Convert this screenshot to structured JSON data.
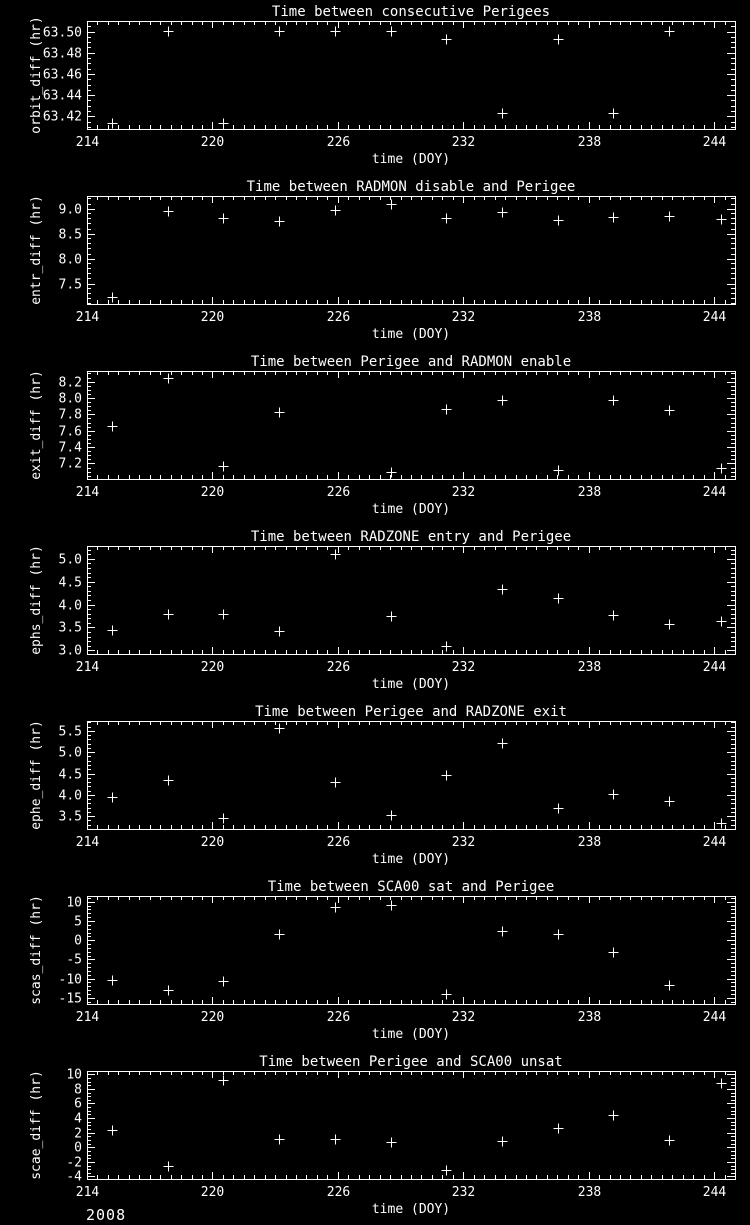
{
  "page": {
    "background": "#000000",
    "foreground": "#ffffff"
  },
  "footer": {
    "year": "2008"
  },
  "chart_data": [
    {
      "type": "scatter",
      "marker": "plus",
      "title": "Time between consecutive Perigees",
      "xlabel": "time (DOY)",
      "ylabel": "orbit_diff (hr)",
      "xlim": [
        214,
        245
      ],
      "x_ticks": {
        "values": [
          214,
          220,
          226,
          232,
          238,
          244
        ],
        "labels": [
          "214",
          "220",
          "226",
          "232",
          "238",
          "244"
        ],
        "minor_step": 0.5
      },
      "ylim": [
        63.408,
        63.51
      ],
      "y_ticks": {
        "values": [
          63.42,
          63.44,
          63.46,
          63.48,
          63.5
        ],
        "labels": [
          "63.42",
          "63.44",
          "63.46",
          "63.48",
          "63.50"
        ],
        "minor_step": 0.005
      },
      "x": [
        215.2,
        217.86,
        220.53,
        223.19,
        225.86,
        228.52,
        231.18,
        233.85,
        236.51,
        239.18,
        241.84,
        244.33
      ],
      "y": [
        63.414,
        63.501,
        63.414,
        63.501,
        63.501,
        63.501,
        63.493,
        63.423,
        63.493,
        63.423,
        63.501,
        null
      ]
    },
    {
      "type": "scatter",
      "marker": "plus",
      "title": "Time between RADMON disable and Perigee",
      "xlabel": "time (DOY)",
      "ylabel": "entr_diff (hr)",
      "xlim": [
        214,
        245
      ],
      "x_ticks": {
        "values": [
          214,
          220,
          226,
          232,
          238,
          244
        ],
        "labels": [
          "214",
          "220",
          "226",
          "232",
          "238",
          "244"
        ],
        "minor_step": 0.5
      },
      "ylim": [
        7.09,
        9.25
      ],
      "y_ticks": {
        "values": [
          7.5,
          8.0,
          8.5,
          9.0
        ],
        "labels": [
          "7.5",
          "8.0",
          "8.5",
          "9.0"
        ],
        "minor_step": 0.1
      },
      "x": [
        215.2,
        217.86,
        220.53,
        223.19,
        225.86,
        228.52,
        231.18,
        233.85,
        236.51,
        239.18,
        241.84,
        244.33
      ],
      "y": [
        7.23,
        8.95,
        8.8,
        8.74,
        8.96,
        9.08,
        8.81,
        8.94,
        8.77,
        8.82,
        8.85,
        8.79
      ]
    },
    {
      "type": "scatter",
      "marker": "plus",
      "title": "Time between Perigee and RADMON enable",
      "xlabel": "time (DOY)",
      "ylabel": "exit_diff (hr)",
      "xlim": [
        214,
        245
      ],
      "x_ticks": {
        "values": [
          214,
          220,
          226,
          232,
          238,
          244
        ],
        "labels": [
          "214",
          "220",
          "226",
          "232",
          "238",
          "244"
        ],
        "minor_step": 0.5
      },
      "ylim": [
        7.01,
        8.33
      ],
      "y_ticks": {
        "values": [
          7.2,
          7.4,
          7.6,
          7.8,
          8.0,
          8.2
        ],
        "labels": [
          "7.2",
          "7.4",
          "7.6",
          "7.8",
          "8.0",
          "8.2"
        ],
        "minor_step": 0.05
      },
      "x": [
        215.2,
        217.86,
        220.53,
        223.19,
        225.86,
        228.52,
        231.18,
        233.85,
        236.51,
        239.18,
        241.84,
        244.33
      ],
      "y": [
        7.66,
        8.25,
        7.17,
        7.83,
        null,
        7.1,
        7.86,
        7.97,
        7.12,
        7.97,
        7.85,
        7.15
      ]
    },
    {
      "type": "scatter",
      "marker": "plus",
      "title": "Time between RADZONE entry and Perigee",
      "xlabel": "time (DOY)",
      "ylabel": "ephs_diff (hr)",
      "xlim": [
        214,
        245
      ],
      "x_ticks": {
        "values": [
          214,
          220,
          226,
          232,
          238,
          244
        ],
        "labels": [
          "214",
          "220",
          "226",
          "232",
          "238",
          "244"
        ],
        "minor_step": 0.5
      },
      "ylim": [
        2.92,
        5.28
      ],
      "y_ticks": {
        "values": [
          3.0,
          3.5,
          4.0,
          4.5,
          5.0
        ],
        "labels": [
          "3.0",
          "3.5",
          "4.0",
          "4.5",
          "5.0"
        ],
        "minor_step": 0.1
      },
      "x": [
        215.2,
        217.86,
        220.53,
        223.19,
        225.86,
        228.52,
        231.18,
        233.85,
        236.51,
        239.18,
        241.84,
        244.33
      ],
      "y": [
        3.45,
        3.8,
        3.8,
        3.42,
        5.11,
        3.75,
        3.1,
        4.35,
        4.15,
        3.78,
        3.57,
        3.65
      ]
    },
    {
      "type": "scatter",
      "marker": "plus",
      "title": "Time between Perigee and RADZONE exit",
      "xlabel": "time (DOY)",
      "ylabel": "ephe_diff (hr)",
      "xlim": [
        214,
        245
      ],
      "x_ticks": {
        "values": [
          214,
          220,
          226,
          232,
          238,
          244
        ],
        "labels": [
          "214",
          "220",
          "226",
          "232",
          "238",
          "244"
        ],
        "minor_step": 0.5
      },
      "ylim": [
        3.2,
        5.73
      ],
      "y_ticks": {
        "values": [
          3.5,
          4.0,
          4.5,
          5.0,
          5.5
        ],
        "labels": [
          "3.5",
          "4.0",
          "4.5",
          "5.0",
          "5.5"
        ],
        "minor_step": 0.1
      },
      "x": [
        215.2,
        217.86,
        220.53,
        223.19,
        225.86,
        228.52,
        231.18,
        233.85,
        236.51,
        239.18,
        241.84,
        244.33
      ],
      "y": [
        3.95,
        4.35,
        3.45,
        5.56,
        4.3,
        3.52,
        4.46,
        5.21,
        3.7,
        4.01,
        3.85,
        3.35
      ]
    },
    {
      "type": "scatter",
      "marker": "plus",
      "title": "Time between SCA00 sat and Perigee",
      "xlabel": "time (DOY)",
      "ylabel": "scas_diff (hr)",
      "xlim": [
        214,
        245
      ],
      "x_ticks": {
        "values": [
          214,
          220,
          226,
          232,
          238,
          244
        ],
        "labels": [
          "214",
          "220",
          "226",
          "232",
          "238",
          "244"
        ],
        "minor_step": 0.5
      },
      "ylim": [
        -16.6,
        11.5
      ],
      "y_ticks": {
        "values": [
          -15,
          -10,
          -5,
          0,
          5,
          10
        ],
        "labels": [
          "-15",
          "-10",
          "-5",
          "0",
          "5",
          "10"
        ],
        "minor_step": 1
      },
      "x": [
        215.2,
        217.86,
        220.53,
        223.19,
        225.86,
        228.52,
        231.18,
        233.85,
        236.51,
        239.18,
        241.84,
        244.33
      ],
      "y": [
        -10.3,
        -13.0,
        -10.5,
        1.5,
        8.7,
        9.1,
        -14.0,
        2.3,
        1.5,
        -3.2,
        -11.7,
        null
      ]
    },
    {
      "type": "scatter",
      "marker": "plus",
      "title": "Time between Perigee and SCA00 unsat",
      "xlabel": "time (DOY)",
      "ylabel": "scae_diff (hr)",
      "xlim": [
        214,
        245
      ],
      "x_ticks": {
        "values": [
          214,
          220,
          226,
          232,
          238,
          244
        ],
        "labels": [
          "214",
          "220",
          "226",
          "232",
          "238",
          "244"
        ],
        "minor_step": 0.5
      },
      "ylim": [
        -4.35,
        10.45
      ],
      "y_ticks": {
        "values": [
          -4,
          -2,
          0,
          2,
          4,
          6,
          8,
          10
        ],
        "labels": [
          "-4",
          "-2",
          "0",
          "2",
          "4",
          "6",
          "8",
          "10"
        ],
        "minor_step": 0.5
      },
      "x": [
        215.2,
        217.86,
        220.53,
        223.19,
        225.86,
        228.52,
        231.18,
        233.85,
        236.51,
        239.18,
        241.84,
        244.33
      ],
      "y": [
        2.3,
        -2.5,
        9.2,
        1.2,
        1.2,
        0.7,
        -3.1,
        0.9,
        2.7,
        4.4,
        1.0,
        8.8
      ]
    }
  ]
}
